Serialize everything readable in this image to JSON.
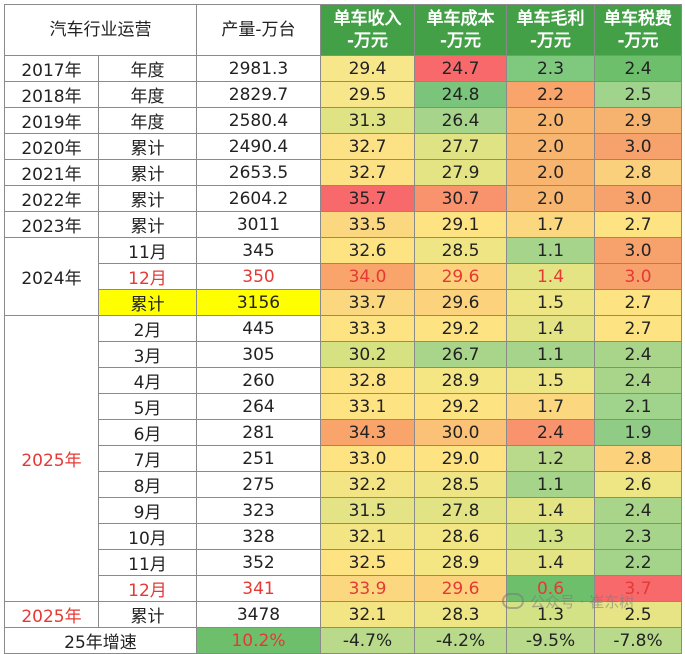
{
  "headers": {
    "label": "汽车行业运营",
    "production": "产量-万台",
    "revenue": "单车收入\n-万元",
    "cost": "单车成本\n-万元",
    "margin": "单车毛利\n-万元",
    "tax": "单车税费\n-万元"
  },
  "groups": {
    "y2024": "2024年",
    "y2025": "2025年"
  },
  "rows": [
    {
      "year": "2017年",
      "period": "年度",
      "prod": "2981.3",
      "rev": "29.4",
      "cost": "24.7",
      "margin": "2.3",
      "tax": "2.4",
      "c": [
        "#f8e68a",
        "#f8696b",
        "#7fc97f",
        "#6dbf6b"
      ]
    },
    {
      "year": "2018年",
      "period": "年度",
      "prod": "2829.7",
      "rev": "29.5",
      "cost": "24.8",
      "margin": "2.2",
      "tax": "2.5",
      "c": [
        "#f8e68a",
        "#7bc47b",
        "#f9a46b",
        "#a0d38b"
      ]
    },
    {
      "year": "2019年",
      "period": "年度",
      "prod": "2580.4",
      "rev": "31.3",
      "cost": "26.4",
      "margin": "2.0",
      "tax": "2.9",
      "c": [
        "#dfe383",
        "#a6d48a",
        "#f8b56f",
        "#f6b26f"
      ]
    },
    {
      "year": "2020年",
      "period": "累计",
      "prod": "2490.4",
      "rev": "32.7",
      "cost": "27.7",
      "margin": "2.0",
      "tax": "3.0",
      "c": [
        "#fce185",
        "#dfe383",
        "#f8b56f",
        "#f7a16c"
      ]
    },
    {
      "year": "2021年",
      "period": "累计",
      "prod": "2653.5",
      "rev": "32.7",
      "cost": "27.9",
      "margin": "2.0",
      "tax": "2.8",
      "c": [
        "#fce185",
        "#e5e485",
        "#f8b56f",
        "#fbd07c"
      ]
    },
    {
      "year": "2022年",
      "period": "累计",
      "prod": "2604.2",
      "rev": "35.7",
      "cost": "30.7",
      "margin": "2.0",
      "tax": "3.0",
      "c": [
        "#f8696b",
        "#f9936d",
        "#f8b56f",
        "#f7a16c"
      ]
    },
    {
      "year": "2023年",
      "period": "累计",
      "prod": "3011",
      "rev": "33.5",
      "cost": "29.1",
      "margin": "1.7",
      "tax": "2.7",
      "c": [
        "#fbd880",
        "#fde382",
        "#fbd880",
        "#fde382"
      ]
    },
    {
      "year": "",
      "period": "11月",
      "prod": "345",
      "rev": "32.6",
      "cost": "28.5",
      "margin": "1.1",
      "tax": "3.0",
      "c": [
        "#fde382",
        "#f0e584",
        "#a6d48a",
        "#f7a16c"
      ],
      "red": false
    },
    {
      "year": "",
      "period": "12月",
      "prod": "350",
      "rev": "34.0",
      "cost": "29.6",
      "margin": "1.4",
      "tax": "3.0",
      "c": [
        "#f9a46b",
        "#fcd27d",
        "#e5e485",
        "#f7a16c"
      ],
      "red": true
    },
    {
      "year": "",
      "period": "累计",
      "prod": "3156",
      "rev": "33.7",
      "cost": "29.6",
      "margin": "1.5",
      "tax": "2.7",
      "c": [
        "#fbd880",
        "#fcd27d",
        "#eee584",
        "#fde382"
      ],
      "yellow": true
    },
    {
      "year": "",
      "period": "2月",
      "prod": "445",
      "rev": "33.3",
      "cost": "29.2",
      "margin": "1.4",
      "tax": "2.7",
      "c": [
        "#fde382",
        "#fde382",
        "#e5e485",
        "#fde382"
      ]
    },
    {
      "year": "",
      "period": "3月",
      "prod": "305",
      "rev": "30.2",
      "cost": "26.7",
      "margin": "1.1",
      "tax": "2.4",
      "c": [
        "#d6e182",
        "#a9d58a",
        "#a6d48a",
        "#a9d58a"
      ]
    },
    {
      "year": "",
      "period": "4月",
      "prod": "260",
      "rev": "32.8",
      "cost": "28.9",
      "margin": "1.5",
      "tax": "2.4",
      "c": [
        "#fde382",
        "#f5e684",
        "#eee584",
        "#a9d58a"
      ]
    },
    {
      "year": "",
      "period": "5月",
      "prod": "264",
      "rev": "33.1",
      "cost": "29.2",
      "margin": "1.7",
      "tax": "2.1",
      "c": [
        "#fde382",
        "#fde382",
        "#fbd880",
        "#a0d38b"
      ]
    },
    {
      "year": "",
      "period": "6月",
      "prod": "281",
      "rev": "34.3",
      "cost": "30.0",
      "margin": "2.4",
      "tax": "1.9",
      "c": [
        "#f9a46b",
        "#fbc176",
        "#f9936d",
        "#90cc85"
      ]
    },
    {
      "year": "",
      "period": "7月",
      "prod": "251",
      "rev": "33.0",
      "cost": "29.0",
      "margin": "1.2",
      "tax": "2.8",
      "c": [
        "#fde382",
        "#fde382",
        "#b8da8a",
        "#fcd27d"
      ]
    },
    {
      "year": "",
      "period": "8月",
      "prod": "275",
      "rev": "32.2",
      "cost": "28.5",
      "margin": "1.1",
      "tax": "2.6",
      "c": [
        "#f3e584",
        "#f0e584",
        "#a6d48a",
        "#eee584"
      ]
    },
    {
      "year": "",
      "period": "9月",
      "prod": "323",
      "rev": "31.5",
      "cost": "27.8",
      "margin": "1.4",
      "tax": "2.4",
      "c": [
        "#e4e385",
        "#e2e384",
        "#e5e485",
        "#a9d58a"
      ]
    },
    {
      "year": "",
      "period": "10月",
      "prod": "328",
      "rev": "32.1",
      "cost": "28.6",
      "margin": "1.3",
      "tax": "2.3",
      "c": [
        "#f3e584",
        "#f1e584",
        "#d4e286",
        "#a6d48a"
      ]
    },
    {
      "year": "",
      "period": "11月",
      "prod": "352",
      "rev": "32.5",
      "cost": "28.9",
      "margin": "1.4",
      "tax": "2.2",
      "c": [
        "#fde382",
        "#f5e684",
        "#e5e485",
        "#a3d48a"
      ]
    },
    {
      "year": "",
      "period": "12月",
      "prod": "341",
      "rev": "33.9",
      "cost": "29.6",
      "margin": "0.6",
      "tax": "3.7",
      "c": [
        "#fbd880",
        "#fcd27d",
        "#6dbf6b",
        "#f8696b"
      ],
      "red": true
    },
    {
      "year": "2025年",
      "period": "累计",
      "prod": "3478",
      "rev": "32.1",
      "cost": "28.3",
      "margin": "1.3",
      "tax": "2.5",
      "c": [
        "#f3e584",
        "#eee584",
        "#d4e286",
        "#e7e485"
      ],
      "yearRed": true
    }
  ],
  "growth": {
    "label": "25年增速",
    "prod": "10.2%",
    "rev": "-4.7%",
    "cost": "-4.2%",
    "margin": "-9.5%",
    "tax": "-7.8%",
    "colors": [
      "#6dbf6b",
      "#b8da8a",
      "#b8da8a",
      "#b8da8a",
      "#b8da8a"
    ]
  },
  "watermark": "公众号 · 崔东树"
}
